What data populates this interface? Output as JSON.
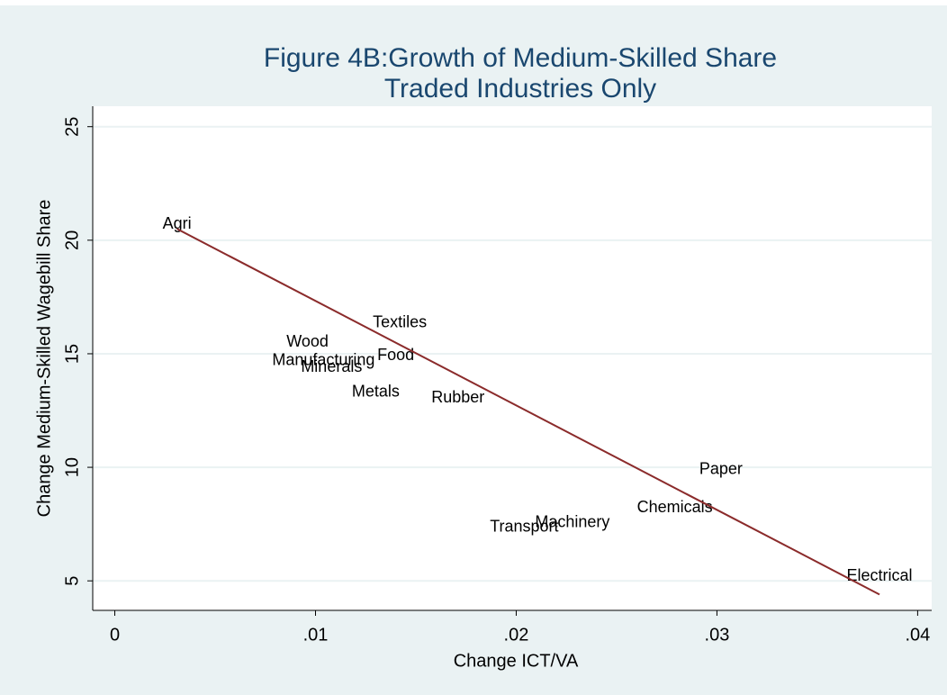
{
  "chart_data": {
    "type": "scatter",
    "title": "Figure 4B:Growth of Medium-Skilled Share",
    "subtitle": "Traded Industries Only",
    "x_label": "Change ICT/VA",
    "y_label": "Change Medium-Skilled Wagebill Share",
    "labels": [
      "Agri",
      "Textiles",
      "Wood",
      "Manufacturing",
      "Food",
      "Minerals",
      "Metals",
      "Rubber",
      "Paper",
      "Chemicals",
      "Machinery",
      "Transport",
      "Electrical"
    ],
    "x": [
      0.0031,
      0.0142,
      0.0096,
      0.0104,
      0.014,
      0.0108,
      0.013,
      0.0171,
      0.0302,
      0.0279,
      0.0228,
      0.0204,
      0.0381
    ],
    "y": [
      20.7,
      16.35,
      15.5,
      14.7,
      14.9,
      14.4,
      13.3,
      13.05,
      9.9,
      8.2,
      7.55,
      7.35,
      5.2
    ],
    "label_color": "#000000",
    "fit": {
      "x": [
        0.0031,
        0.0381
      ],
      "y": [
        20.5,
        4.4
      ],
      "color": "#8b2b2b"
    },
    "xlim": [
      -0.0011,
      0.0407
    ],
    "ylim": [
      3.7,
      25.9
    ],
    "xticks": [
      0,
      {
        "value": 0.01,
        "label": ".01"
      },
      {
        "value": 0.02,
        "label": ".02"
      },
      {
        "value": 0.03,
        "label": ".03"
      },
      {
        "value": 0.04,
        "label": ".04"
      }
    ],
    "yticks": [
      5,
      10,
      15,
      20,
      25
    ],
    "grid": true
  }
}
